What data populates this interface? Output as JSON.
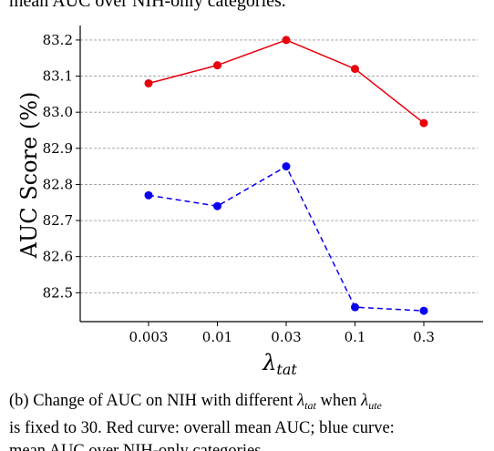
{
  "header_caption_fragment": "mean AUC over NIH-only categories.",
  "chart_data": {
    "type": "line",
    "categories": [
      "0.003",
      "0.01",
      "0.03",
      "0.1",
      "0.3"
    ],
    "ylabel": "AUC Score (%)",
    "xlabel_symbol": "λ",
    "xlabel_subscript": "tat",
    "ylim": [
      82.42,
      83.22
    ],
    "yticks": [
      "82.5",
      "82.6",
      "82.7",
      "82.8",
      "82.9",
      "83.0",
      "83.1",
      "83.2"
    ],
    "grid": "horizontal dashed",
    "series": [
      {
        "values": [
          83.08,
          83.13,
          83.2,
          83.12,
          82.97
        ],
        "color": "#e8000b",
        "style": "solid"
      },
      {
        "values": [
          82.77,
          82.74,
          82.85,
          82.46,
          82.45
        ],
        "color": "#0a00f0",
        "style": "dashed"
      }
    ]
  },
  "caption": {
    "prefix": "(b) Change of AUC on NIH with different ",
    "sym1": "λ",
    "sub1": "tat",
    "mid": " when ",
    "sym2": "λ",
    "sub2": "ute",
    "line2": "is fixed to 30. Red curve: overall mean AUC; blue curve:",
    "line3": "mean AUC over NIH-only categories."
  }
}
